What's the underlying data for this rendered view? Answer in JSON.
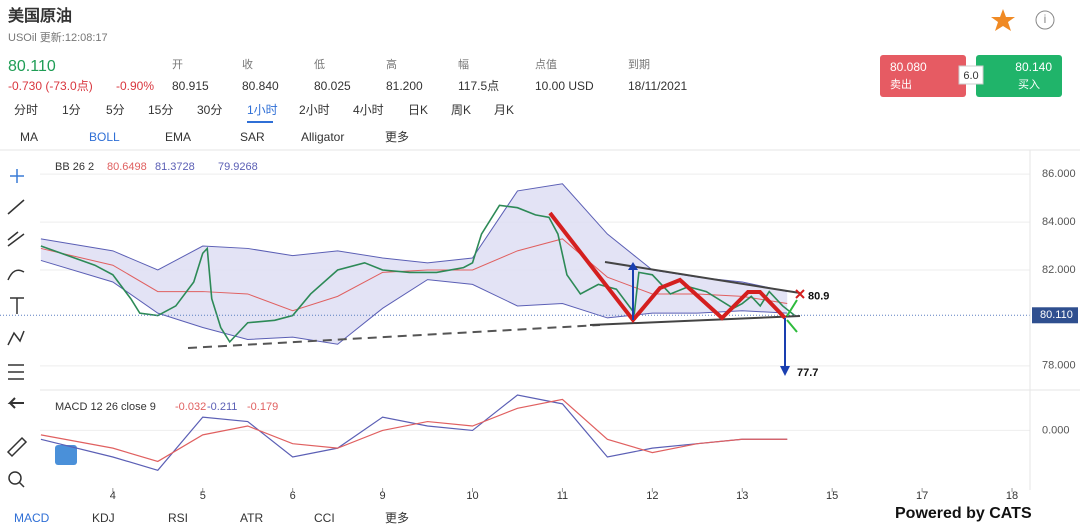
{
  "header": {
    "title": "美国原油",
    "subtitle": "USOil 更新:12:08:17"
  },
  "quote": {
    "price": "80.110",
    "change": "-0.730 (-73.0点)",
    "change_pct": "-0.90%",
    "fields": [
      {
        "label": "开",
        "value": "80.915"
      },
      {
        "label": "收",
        "value": "80.840"
      },
      {
        "label": "低",
        "value": "80.025"
      },
      {
        "label": "高",
        "value": "81.200"
      },
      {
        "label": "幅",
        "value": "117.5点"
      },
      {
        "label": "点值",
        "value": "10.00 USD"
      },
      {
        "label": "到期",
        "value": "18/11/2021"
      }
    ]
  },
  "trade": {
    "sell_price": "80.080",
    "sell_label": "卖出",
    "spread": "6.0",
    "buy_price": "80.140",
    "buy_label": "买入"
  },
  "timeframes": [
    "分时",
    "1分",
    "5分",
    "15分",
    "30分",
    "1小时",
    "2小时",
    "4小时",
    "日K",
    "周K",
    "月K"
  ],
  "indicators": [
    "MA",
    "BOLL",
    "EMA",
    "SAR",
    "Alligator",
    "更多"
  ],
  "bottom_tabs": [
    "MACD",
    "KDJ",
    "RSI",
    "ATR",
    "CCI",
    "更多"
  ],
  "watermark": "Powered by CATS",
  "chart_data": [
    {
      "type": "line",
      "legend": {
        "name": "BB 26 2",
        "values": [
          "80.6498",
          "81.3728",
          "79.9268"
        ]
      },
      "xlim": [
        -0.81,
        10.2
      ],
      "ylim": [
        77.2,
        86.8
      ],
      "xticks": [
        {
          "value": 0,
          "label": "4"
        },
        {
          "value": 1,
          "label": "5"
        },
        {
          "value": 2,
          "label": "6"
        },
        {
          "value": 3,
          "label": "9"
        },
        {
          "value": 4,
          "label": "10"
        },
        {
          "value": 5,
          "label": "11"
        },
        {
          "value": 6,
          "label": "12"
        },
        {
          "value": 7,
          "label": "13"
        },
        {
          "value": 8,
          "label": "15"
        },
        {
          "value": 9,
          "label": "17"
        },
        {
          "value": 10,
          "label": "18"
        }
      ],
      "yticks": [
        {
          "value": 78,
          "label": "78.000"
        },
        {
          "value": 82,
          "label": "82.000"
        },
        {
          "value": 84,
          "label": "84.000"
        },
        {
          "value": 86,
          "label": "86.000"
        }
      ],
      "last_price": {
        "value": 80.11,
        "label": "80.110"
      },
      "annotations": [
        80.9,
        77.7
      ],
      "price": {
        "color": "#2d8a57",
        "x": [
          -0.8,
          -0.5,
          -0.2,
          0,
          0.2,
          0.3,
          0.5,
          0.7,
          0.9,
          1.0,
          1.05,
          1.1,
          1.2,
          1.3,
          1.5,
          1.8,
          2.0,
          2.2,
          2.5,
          2.8,
          3.0,
          3.3,
          3.6,
          3.9,
          4.0,
          4.1,
          4.3,
          4.5,
          4.7,
          4.85,
          4.95,
          5.05,
          5.2,
          5.4,
          5.6,
          5.8,
          5.85,
          6.0,
          6.2,
          6.4,
          6.6,
          6.9,
          7.0,
          7.1,
          7.2,
          7.3,
          7.45,
          7.58
        ],
        "values": [
          83.0,
          82.6,
          82.2,
          81.8,
          80.8,
          80.2,
          80.1,
          80.5,
          81.5,
          82.7,
          82.9,
          80.8,
          79.6,
          79.0,
          79.8,
          79.9,
          80.1,
          81.0,
          82.0,
          82.3,
          82.0,
          81.9,
          81.9,
          82.1,
          82.3,
          83.5,
          84.7,
          84.6,
          84.3,
          84.2,
          83.5,
          81.8,
          81.0,
          81.4,
          81.2,
          80.2,
          81.9,
          81.8,
          81.0,
          81.3,
          81.1,
          80.4,
          80.6,
          80.9,
          80.5,
          81.1,
          80.5,
          80.11
        ]
      },
      "bands": {
        "x": [
          -0.8,
          0,
          0.5,
          1,
          1.5,
          2,
          2.5,
          3,
          3.5,
          4,
          4.5,
          5,
          5.5,
          6,
          6.5,
          7,
          7.5
        ],
        "series": [
          {
            "name": "upper",
            "color": "#5b5fb5",
            "values": [
              83.3,
              82.8,
              82.0,
              83.0,
              82.9,
              82.6,
              82.8,
              82.5,
              82.3,
              82.5,
              85.3,
              85.6,
              83.5,
              82.0,
              81.7,
              81.5,
              81.1
            ]
          },
          {
            "name": "middle",
            "color": "#e06060",
            "values": [
              82.9,
              82.2,
              81.1,
              81.1,
              81.0,
              80.3,
              80.9,
              81.9,
              82.0,
              82.0,
              82.8,
              83.3,
              81.7,
              81.0,
              81.0,
              80.9,
              80.6
            ]
          },
          {
            "name": "lower",
            "color": "#5b5fb5",
            "values": [
              82.4,
              81.5,
              80.2,
              79.6,
              79.1,
              79.2,
              78.9,
              80.4,
              81.6,
              81.4,
              80.5,
              80.6,
              80.0,
              80.2,
              80.2,
              80.3,
              80.2
            ]
          }
        ]
      }
    },
    {
      "type": "line",
      "legend": {
        "name": "MACD 12 26 close 9",
        "values": [
          "-0.032",
          "-0.211",
          "-0.179"
        ]
      },
      "xlim": [
        -0.81,
        10.2
      ],
      "ylim": [
        -1.3,
        0.8
      ],
      "yticks": [
        {
          "value": 0,
          "label": "0.000"
        }
      ],
      "x": [
        -0.8,
        0,
        0.5,
        1,
        1.5,
        2,
        2.5,
        3,
        3.5,
        4,
        4.5,
        5,
        5.5,
        6,
        6.5,
        7,
        7.5
      ],
      "series": [
        {
          "color": "#5b5fb5",
          "values": [
            -0.2,
            -0.6,
            -0.9,
            0.3,
            0.2,
            -0.6,
            -0.4,
            0.3,
            0.1,
            0.0,
            0.8,
            0.6,
            -0.6,
            -0.4,
            -0.3,
            -0.2,
            -0.2
          ]
        },
        {
          "color": "#e06060",
          "values": [
            -0.1,
            -0.4,
            -0.7,
            -0.1,
            0.1,
            -0.3,
            -0.4,
            0.0,
            0.2,
            0.1,
            0.5,
            0.7,
            -0.2,
            -0.5,
            -0.3,
            -0.2,
            -0.2
          ]
        }
      ]
    }
  ]
}
